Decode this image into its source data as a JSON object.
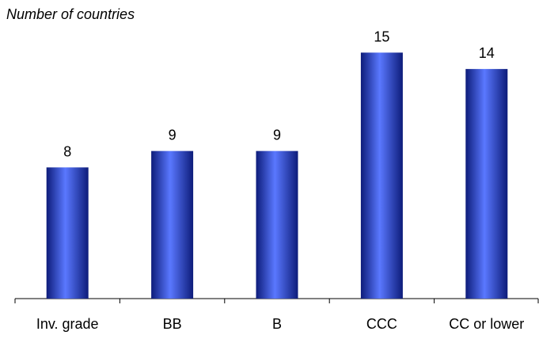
{
  "chart_data": {
    "type": "bar",
    "title": "Number of countries",
    "categories": [
      "Inv. grade",
      "BB",
      "B",
      "CCC",
      "CC or lower"
    ],
    "values": [
      8,
      9,
      9,
      15,
      14
    ],
    "data_labels": [
      "8",
      "9",
      "9",
      "15",
      "14"
    ],
    "xlabel": "",
    "ylabel": "",
    "ylim": [
      0,
      17
    ],
    "grid": false,
    "legend": "none",
    "bar_color": "#2f4fe0",
    "bar_color_dark": "#0d1c7a",
    "bar_color_light": "#5a78ff"
  }
}
